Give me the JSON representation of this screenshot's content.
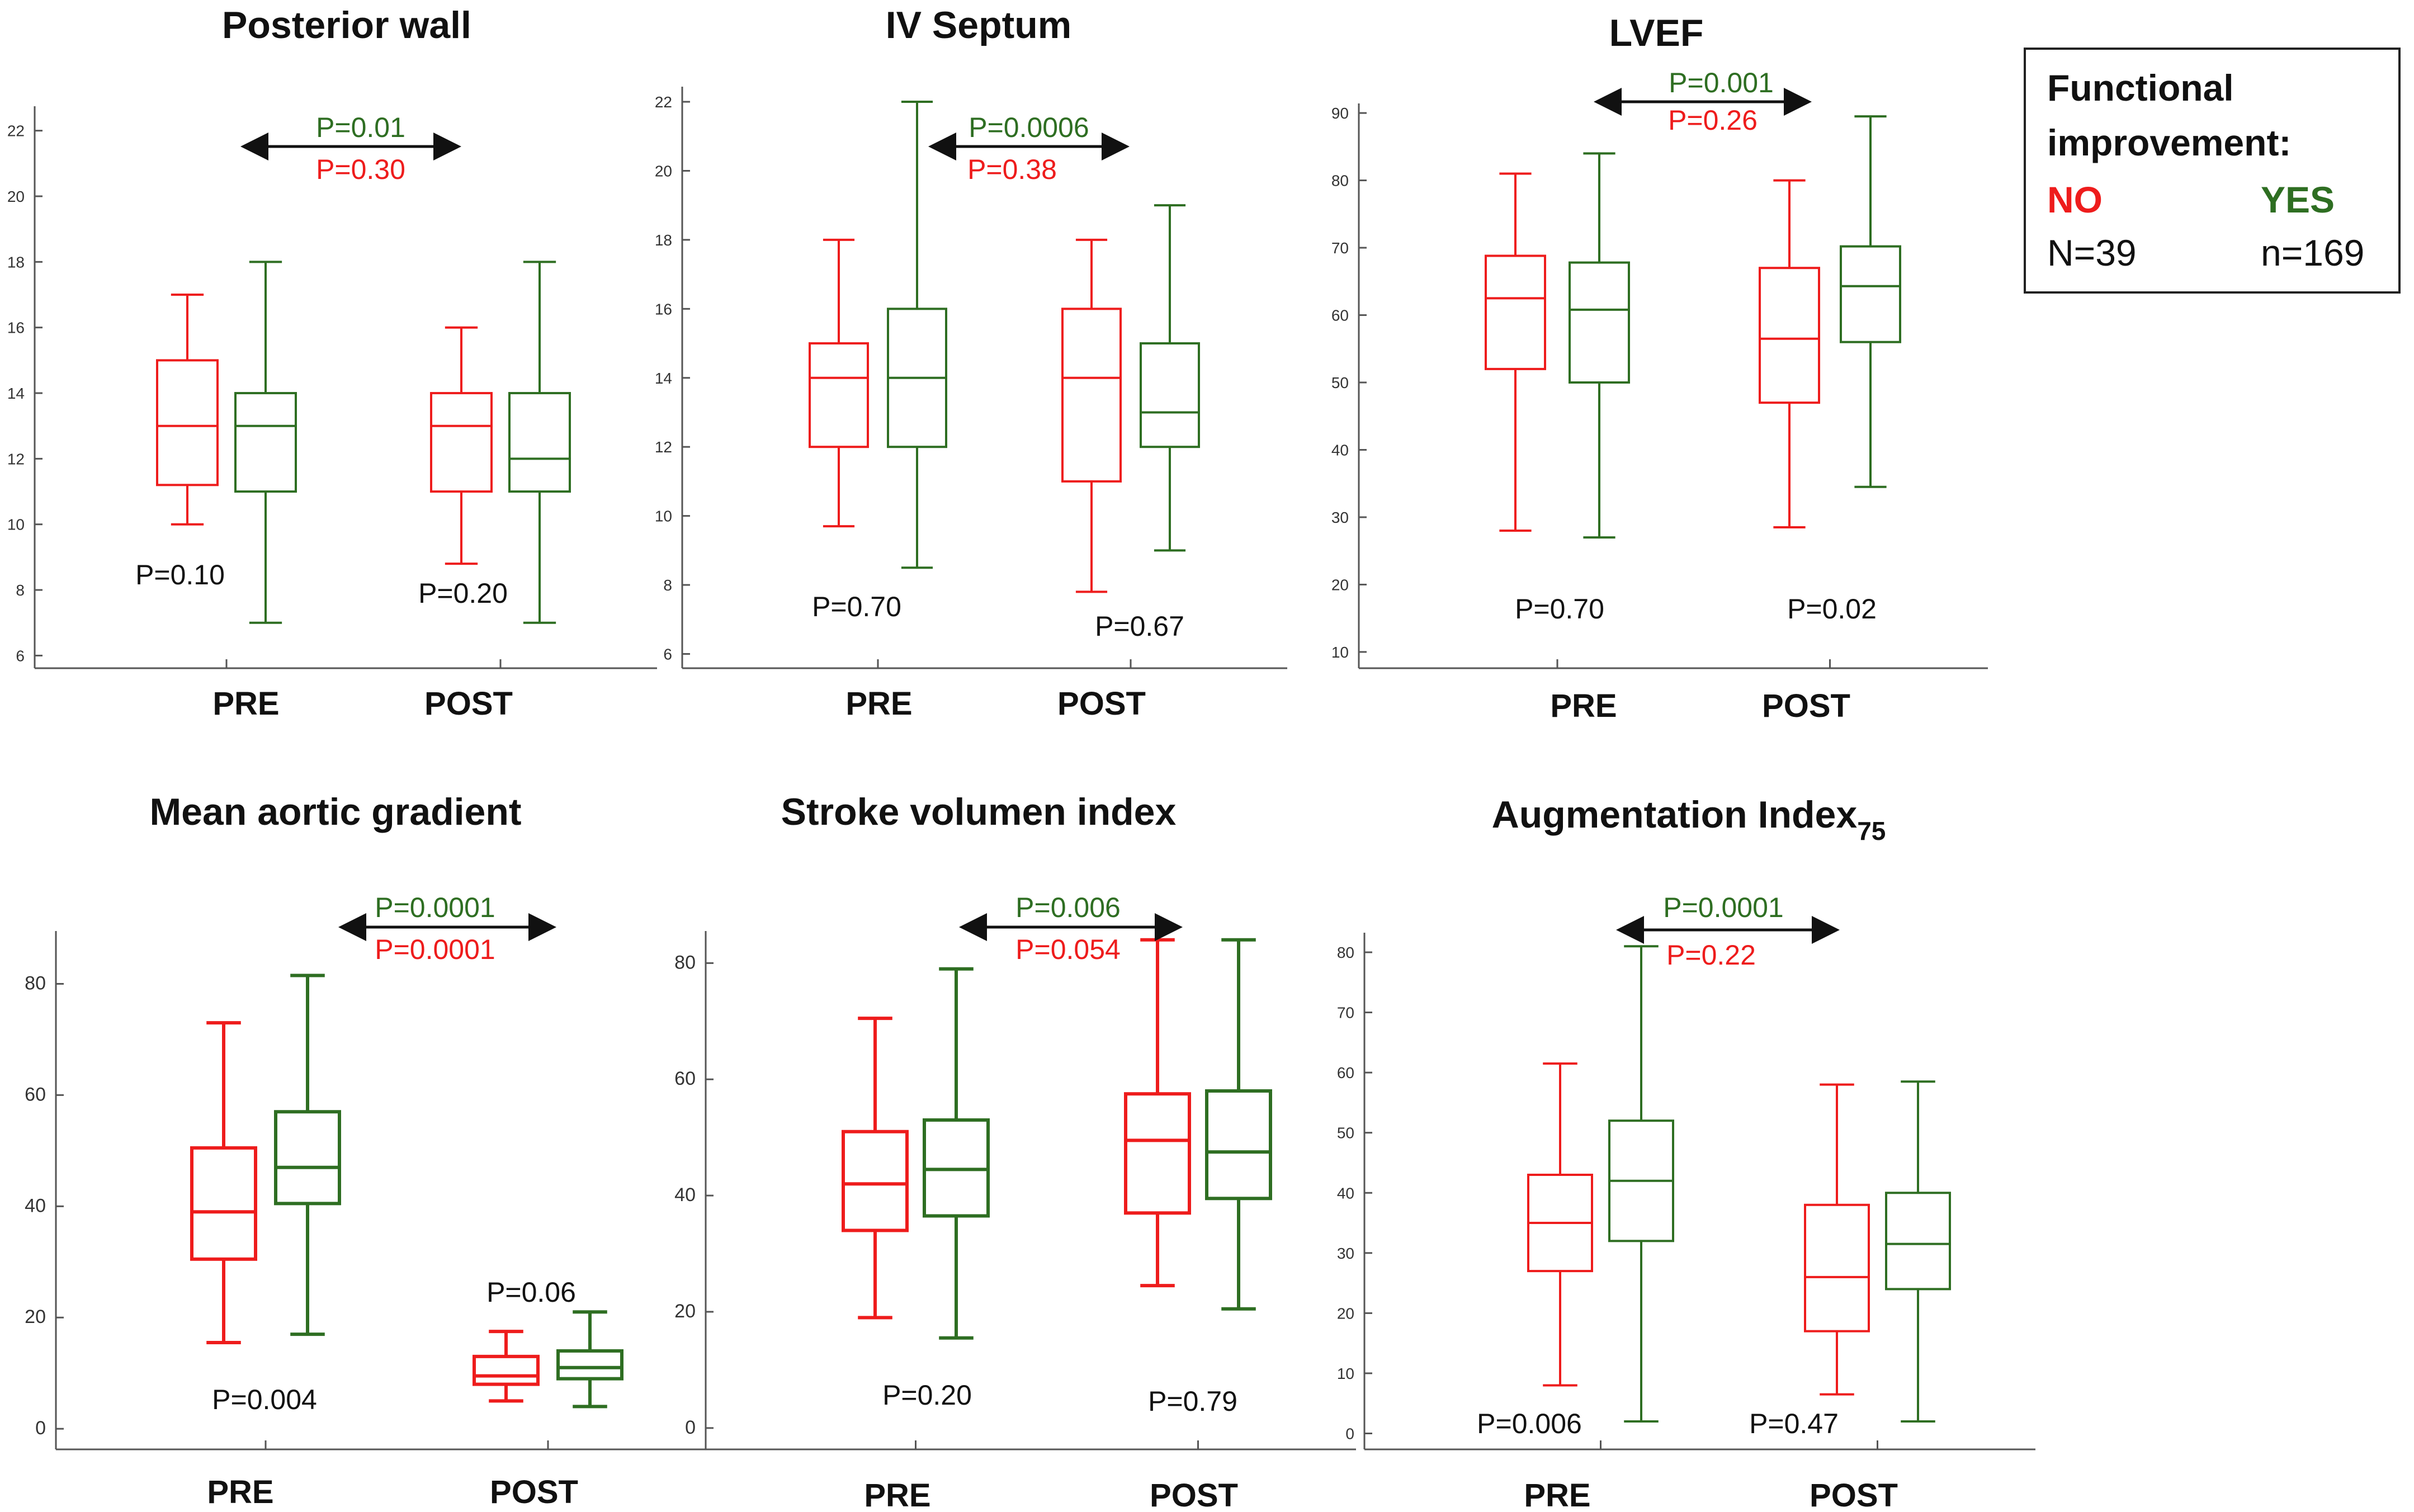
{
  "colors": {
    "no": "#ee1c1c",
    "yes": "#2e6e22",
    "axis": "#555555",
    "arrow": "#111111"
  },
  "legend": {
    "title_line1": "Functional",
    "title_line2": "improvement:",
    "no_label": "NO",
    "yes_label": "YES",
    "no_n": "N=39",
    "yes_n": "n=169"
  },
  "chart_data": [
    {
      "type": "box",
      "title": "Posterior wall",
      "title_sub": "",
      "categories": [
        "PRE",
        "POST"
      ],
      "ylim": [
        5.7,
        23
      ],
      "yticks": [
        6,
        8,
        10,
        12,
        14,
        16,
        18,
        20,
        22
      ],
      "series": [
        {
          "name": "NO",
          "boxes": [
            {
              "min": 10,
              "q1": 11.2,
              "median": 13,
              "q3": 15,
              "max": 17
            },
            {
              "min": 8.8,
              "q1": 11,
              "median": 13,
              "q3": 14,
              "max": 16
            }
          ]
        },
        {
          "name": "YES",
          "boxes": [
            {
              "min": 7,
              "q1": 11,
              "median": 13,
              "q3": 14,
              "max": 18
            },
            {
              "min": 7,
              "q1": 11,
              "median": 12,
              "q3": 14,
              "max": 18
            }
          ]
        }
      ],
      "between_group_p": [
        "P=0.10",
        "P=0.20"
      ],
      "yes_pre_post_p": "P=0.01",
      "no_pre_post_p": "P=0.30"
    },
    {
      "type": "box",
      "title": "IV Septum",
      "title_sub": "",
      "categories": [
        "PRE",
        "POST"
      ],
      "ylim": [
        5.7,
        22.6
      ],
      "yticks": [
        6,
        8,
        10,
        12,
        14,
        16,
        18,
        20,
        22
      ],
      "series": [
        {
          "name": "NO",
          "boxes": [
            {
              "min": 9.7,
              "q1": 12,
              "median": 14,
              "q3": 15,
              "max": 18
            },
            {
              "min": 7.8,
              "q1": 11,
              "median": 14,
              "q3": 16,
              "max": 18
            }
          ]
        },
        {
          "name": "YES",
          "boxes": [
            {
              "min": 8.5,
              "q1": 12,
              "median": 14,
              "q3": 16,
              "max": 22
            },
            {
              "min": 9,
              "q1": 12,
              "median": 13,
              "q3": 15,
              "max": 19
            }
          ]
        }
      ],
      "between_group_p": [
        "P=0.70",
        "P=0.67"
      ],
      "yes_pre_post_p": "P=0.0006",
      "no_pre_post_p": "P=0.38"
    },
    {
      "type": "box",
      "title": "LVEF",
      "title_sub": "",
      "categories": [
        "PRE",
        "POST"
      ],
      "ylim": [
        8,
        92
      ],
      "yticks": [
        10,
        20,
        30,
        40,
        50,
        60,
        70,
        80,
        90
      ],
      "series": [
        {
          "name": "NO",
          "boxes": [
            {
              "min": 28,
              "q1": 52,
              "median": 62.5,
              "q3": 68.8,
              "max": 81
            },
            {
              "min": 28.5,
              "q1": 47,
              "median": 56.5,
              "q3": 67,
              "max": 80
            }
          ]
        },
        {
          "name": "YES",
          "boxes": [
            {
              "min": 27,
              "q1": 50,
              "median": 60.8,
              "q3": 67.8,
              "max": 84
            },
            {
              "min": 34.5,
              "q1": 56,
              "median": 64.3,
              "q3": 70.2,
              "max": 89.5
            }
          ]
        }
      ],
      "between_group_p": [
        "P=0.70",
        "P=0.02"
      ],
      "yes_pre_post_p": "P=0.001",
      "no_pre_post_p": "P=0.26"
    },
    {
      "type": "box",
      "title": "Mean aortic gradient",
      "title_sub": "",
      "categories": [
        "PRE",
        "POST"
      ],
      "ylim": [
        -3,
        90
      ],
      "yticks": [
        0,
        20,
        40,
        60,
        80
      ],
      "series": [
        {
          "name": "NO",
          "boxes": [
            {
              "min": 15.5,
              "q1": 30.5,
              "median": 39,
              "q3": 50.5,
              "max": 73
            },
            {
              "min": 5,
              "q1": 8,
              "median": 9.5,
              "q3": 13,
              "max": 17.5
            }
          ]
        },
        {
          "name": "YES",
          "boxes": [
            {
              "min": 17,
              "q1": 40.5,
              "median": 47,
              "q3": 57,
              "max": 81.5
            },
            {
              "min": 4,
              "q1": 9,
              "median": 11,
              "q3": 14,
              "max": 21
            }
          ]
        }
      ],
      "between_group_p": [
        "P=0.004",
        "P=0.06"
      ],
      "yes_pre_post_p": "P=0.0001",
      "no_pre_post_p": "P=0.0001"
    },
    {
      "type": "box",
      "title": "Stroke volumen index",
      "title_sub": "",
      "categories": [
        "PRE",
        "POST"
      ],
      "ylim": [
        -3,
        86
      ],
      "yticks": [
        0,
        20,
        40,
        60,
        80
      ],
      "series": [
        {
          "name": "NO",
          "boxes": [
            {
              "min": 19,
              "q1": 34,
              "median": 42,
              "q3": 51,
              "max": 70.5
            },
            {
              "min": 24.5,
              "q1": 37,
              "median": 49.5,
              "q3": 57.5,
              "max": 84
            }
          ]
        },
        {
          "name": "YES",
          "boxes": [
            {
              "min": 15.5,
              "q1": 36.5,
              "median": 44.5,
              "q3": 53,
              "max": 79
            },
            {
              "min": 20.5,
              "q1": 39.5,
              "median": 47.5,
              "q3": 58,
              "max": 84
            }
          ]
        }
      ],
      "between_group_p": [
        "P=0.20",
        "P=0.79"
      ],
      "yes_pre_post_p": "P=0.006",
      "no_pre_post_p": "P=0.054"
    },
    {
      "type": "box",
      "title": "Augmentation Index",
      "title_sub": "75",
      "categories": [
        "PRE",
        "POST"
      ],
      "ylim": [
        -2,
        84
      ],
      "yticks": [
        0,
        10,
        20,
        30,
        40,
        50,
        60,
        70,
        80
      ],
      "series": [
        {
          "name": "NO",
          "boxes": [
            {
              "min": 8,
              "q1": 27,
              "median": 35,
              "q3": 43,
              "max": 61.5
            },
            {
              "min": 6.5,
              "q1": 17,
              "median": 26,
              "q3": 38,
              "max": 58
            }
          ]
        },
        {
          "name": "YES",
          "boxes": [
            {
              "min": 2,
              "q1": 32,
              "median": 42,
              "q3": 52,
              "max": 81
            },
            {
              "min": 2,
              "q1": 24,
              "median": 31.5,
              "q3": 40,
              "max": 58.5
            }
          ]
        }
      ],
      "between_group_p": [
        "P=0.006",
        "P=0.47"
      ],
      "yes_pre_post_p": "P=0.0001",
      "no_pre_post_p": "P=0.22"
    }
  ]
}
